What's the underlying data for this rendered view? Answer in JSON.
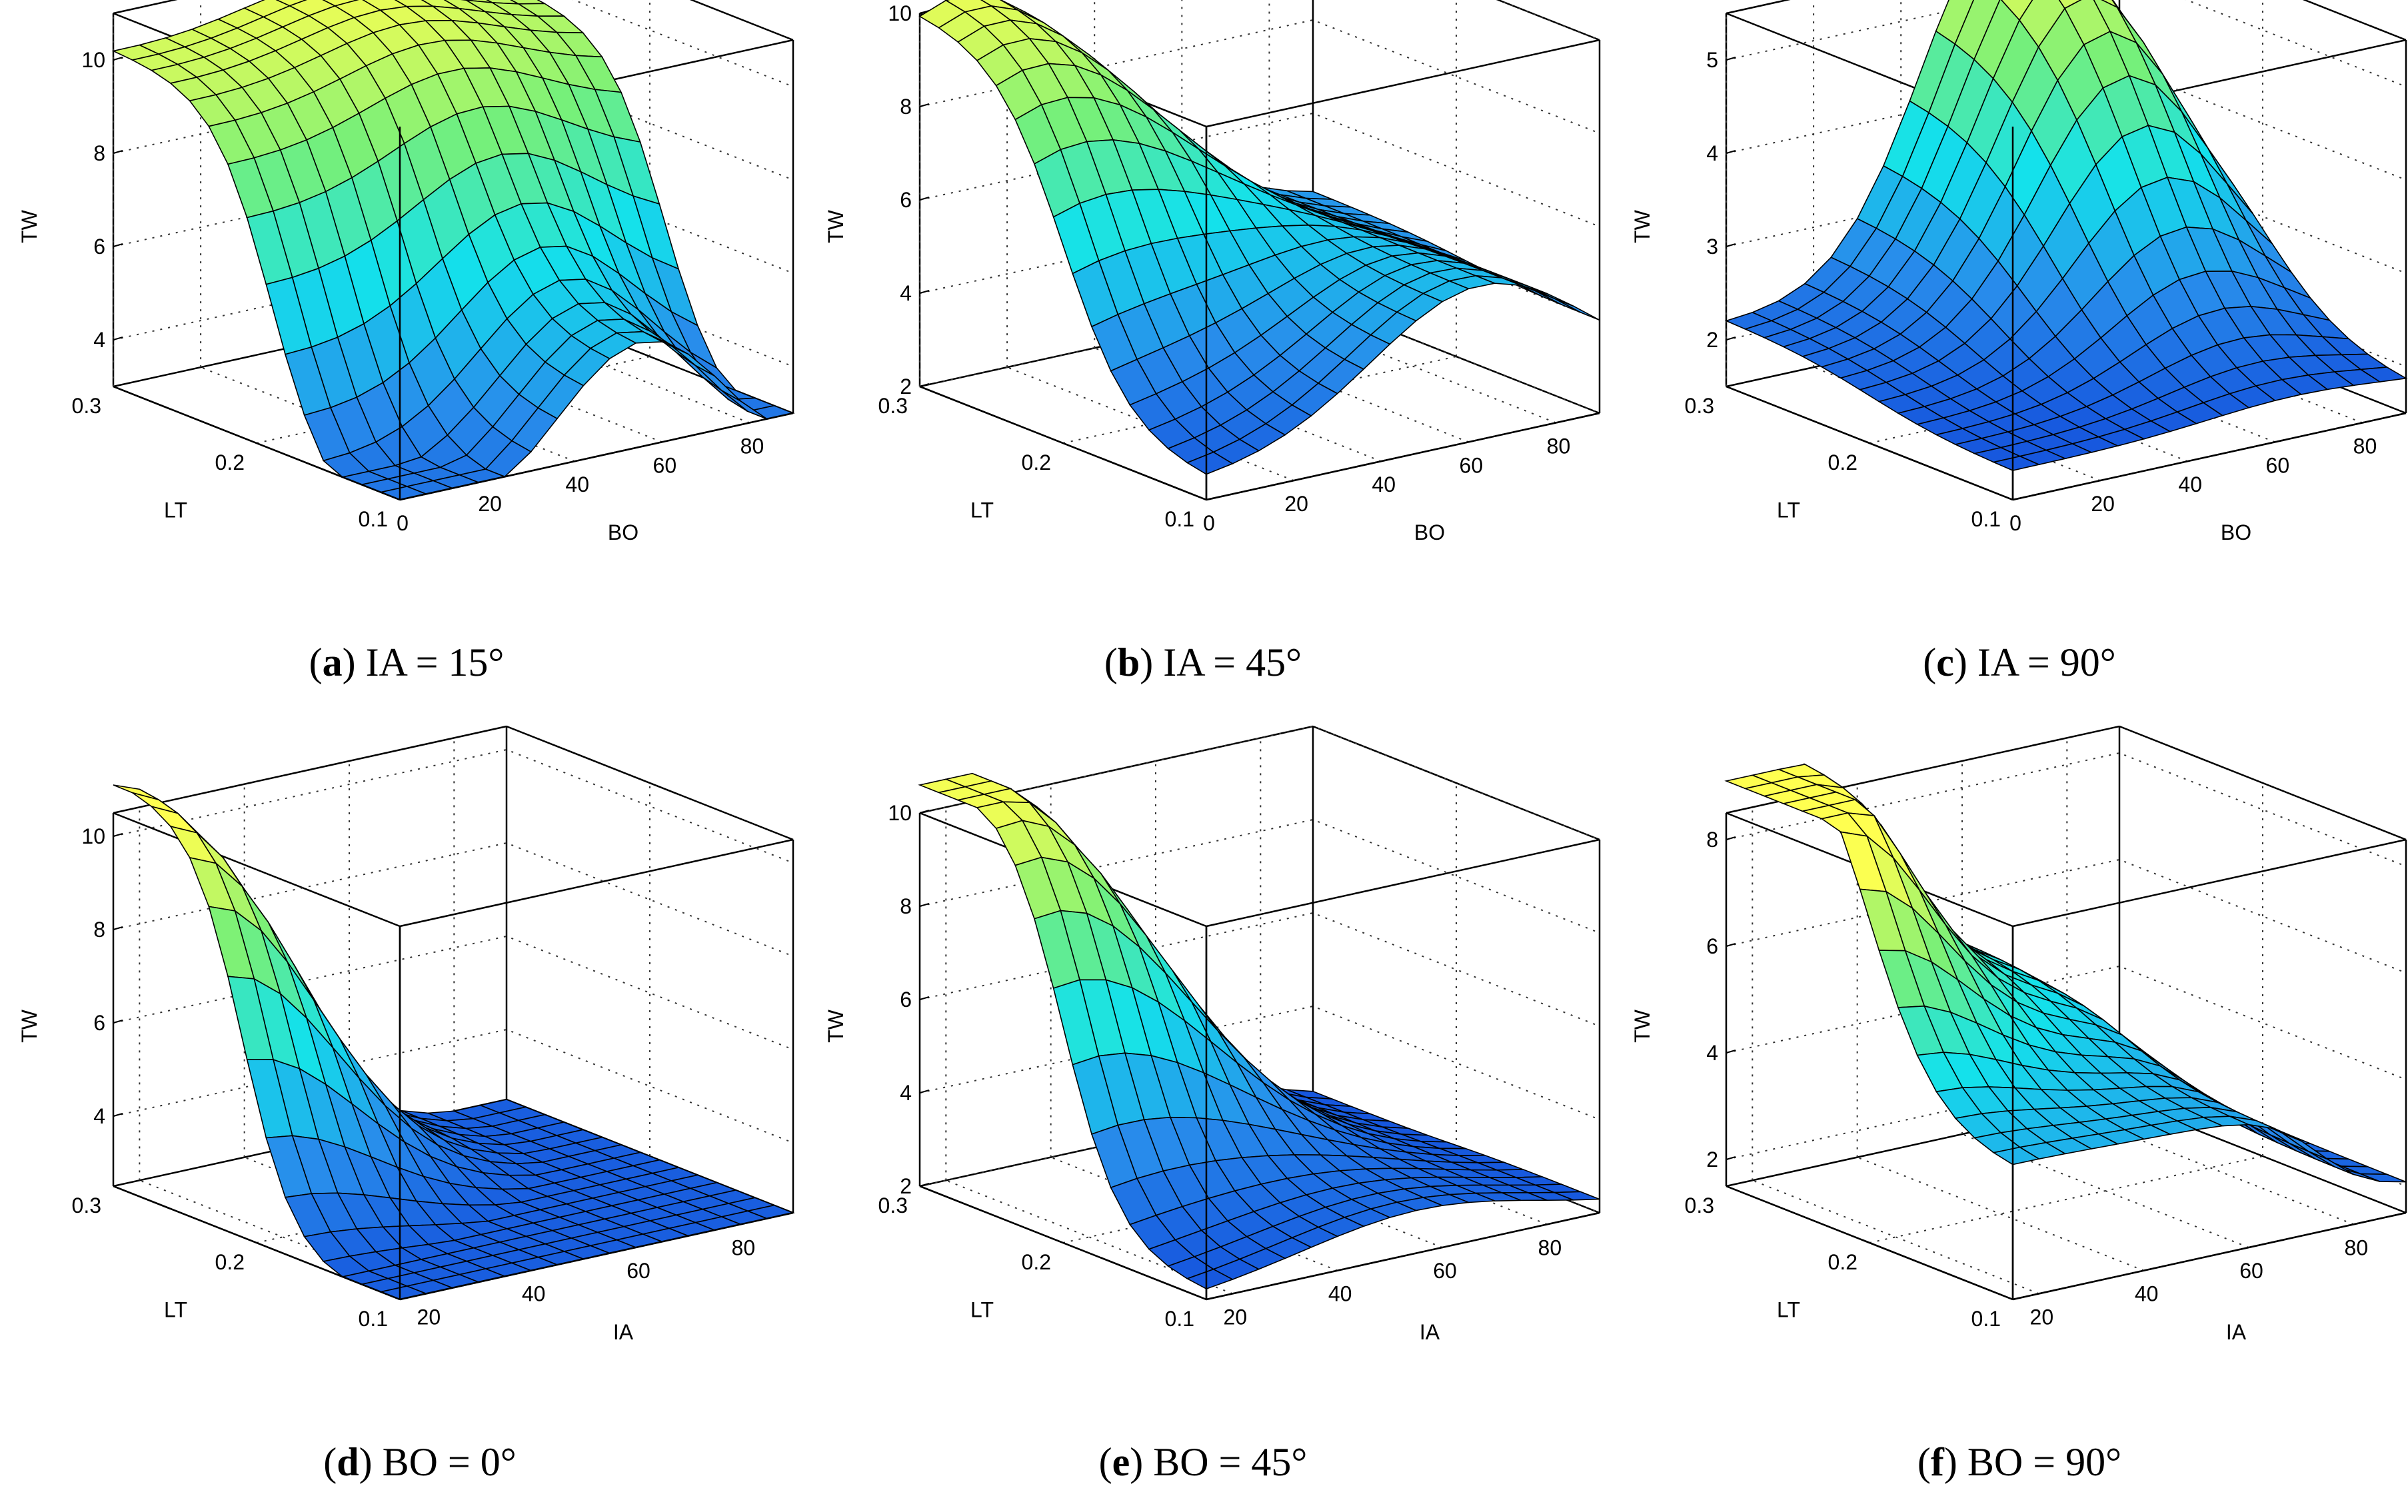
{
  "chart_data": [
    {
      "id": "a",
      "type": "surface",
      "caption_letter": "a",
      "caption_text": "IA = 15°",
      "zlabel": "TW",
      "xlabel": "LT",
      "ylabel": "BO",
      "xlim": [
        0.1,
        0.3
      ],
      "ylim": [
        0,
        90
      ],
      "zlim": [
        3,
        11
      ],
      "xticks": [
        "0.1",
        "0.2",
        "0.3"
      ],
      "yticks": [
        "0",
        "20",
        "40",
        "60",
        "80"
      ],
      "zticks": [
        "4",
        "6",
        "8",
        "10"
      ],
      "surface": {
        "kind": "a",
        "min": 1.5,
        "max": 11
      }
    },
    {
      "id": "b",
      "type": "surface",
      "caption_letter": "b",
      "caption_text": "IA = 45°",
      "zlabel": "TW",
      "xlabel": "LT",
      "ylabel": "BO",
      "xlim": [
        0.1,
        0.3
      ],
      "ylim": [
        0,
        90
      ],
      "zlim": [
        2,
        10
      ],
      "xticks": [
        "0.1",
        "0.2",
        "0.3"
      ],
      "yticks": [
        "0",
        "20",
        "40",
        "60",
        "80"
      ],
      "zticks": [
        "2",
        "4",
        "6",
        "8",
        "10"
      ],
      "surface": {
        "kind": "b",
        "min": 2,
        "max": 10.5
      }
    },
    {
      "id": "c",
      "type": "surface",
      "caption_letter": "c",
      "caption_text": "IA = 90°",
      "zlabel": "TW",
      "xlabel": "LT",
      "ylabel": "BO",
      "xlim": [
        0.1,
        0.3
      ],
      "ylim": [
        0,
        90
      ],
      "zlim": [
        1.5,
        5.5
      ],
      "xticks": [
        "0.1",
        "0.2",
        "0.3"
      ],
      "yticks": [
        "0",
        "20",
        "40",
        "60",
        "80"
      ],
      "zticks": [
        "2",
        "3",
        "4",
        "5"
      ],
      "surface": {
        "kind": "c",
        "min": 1.7,
        "max": 5.8
      }
    },
    {
      "id": "d",
      "type": "surface",
      "caption_letter": "d",
      "caption_text": "BO = 0°",
      "zlabel": "TW",
      "xlabel": "LT",
      "ylabel": "IA",
      "xlim": [
        0.1,
        0.3
      ],
      "ylim": [
        15,
        90
      ],
      "zlim": [
        2.5,
        10.5
      ],
      "xticks": [
        "0.1",
        "0.2",
        "0.3"
      ],
      "yticks": [
        "20",
        "40",
        "60",
        "80"
      ],
      "zticks": [
        "4",
        "6",
        "8",
        "10"
      ],
      "surface": {
        "kind": "d",
        "min": 2,
        "max": 10.6
      }
    },
    {
      "id": "e",
      "type": "surface",
      "caption_letter": "e",
      "caption_text": "BO = 45°",
      "zlabel": "TW",
      "xlabel": "LT",
      "ylabel": "IA",
      "xlim": [
        0.1,
        0.3
      ],
      "ylim": [
        15,
        90
      ],
      "zlim": [
        2,
        10
      ],
      "xticks": [
        "0.1",
        "0.2",
        "0.3"
      ],
      "yticks": [
        "20",
        "40",
        "60",
        "80"
      ],
      "zticks": [
        "2",
        "4",
        "6",
        "8",
        "10"
      ],
      "surface": {
        "kind": "e",
        "min": 2,
        "max": 10.8
      }
    },
    {
      "id": "f",
      "type": "surface",
      "caption_letter": "f",
      "caption_text": "BO = 90°",
      "zlabel": "TW",
      "xlabel": "LT",
      "ylabel": "IA",
      "xlim": [
        0.1,
        0.3
      ],
      "ylim": [
        15,
        90
      ],
      "zlim": [
        1.5,
        8.5
      ],
      "xticks": [
        "0.1",
        "0.2",
        "0.3"
      ],
      "yticks": [
        "20",
        "40",
        "60",
        "80"
      ],
      "zticks": [
        "2",
        "4",
        "6",
        "8"
      ],
      "surface": {
        "kind": "f",
        "min": 1.5,
        "max": 8.5
      }
    }
  ]
}
